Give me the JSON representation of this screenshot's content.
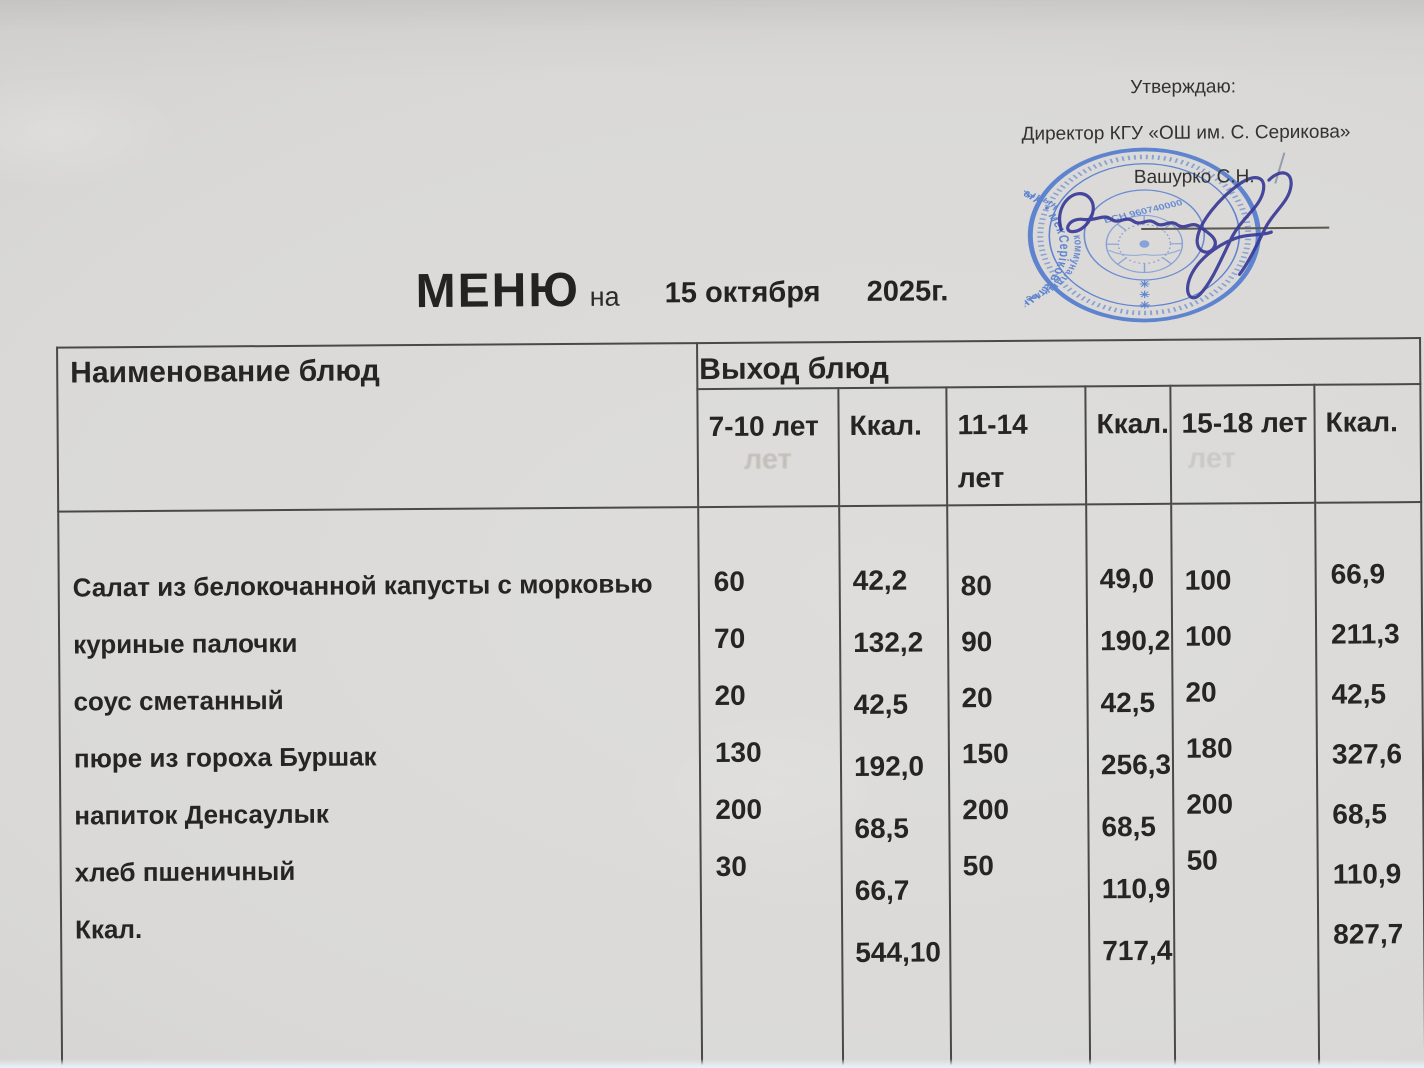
{
  "approval": {
    "label": "Утверждаю:",
    "director_title": "Директор КГУ «ОШ им. С. Серикова»",
    "director_name": "Вашурко С.Н."
  },
  "stamp": {
    "color": "#4d79cf",
    "ring_outer": "Серіков атындағы • жалпы білім беретін • Ақмола облысының • мектебі",
    "ring_inner": "коммуналдық мемлекеттік • білім басқармасы • Есіл • қаласының",
    "bsn": "БСН 960740000",
    "asterisk": "✳"
  },
  "title": {
    "word": "МЕНЮ",
    "preposition": "на",
    "date_day": "15 октября",
    "date_year": "2025г."
  },
  "menu_table": {
    "dishes_header": "Наименование блюд",
    "output_header": "Выход блюд",
    "age_columns": [
      "7-10 лет",
      "Ккал.",
      "11-14 лет",
      "Ккал.",
      "15-18 лет",
      "Ккал."
    ],
    "dishes": [
      "Салат из белокочанной капусты с морковью",
      "куриные палочки",
      "соус сметанный",
      "пюре из гороха Буршак",
      "напиток Денсаулык",
      "хлеб пшеничный",
      "Ккал."
    ],
    "portions_7_10": [
      "60",
      "70",
      "20",
      "130",
      "200",
      "30"
    ],
    "kcal_7_10": [
      "42,2",
      "132,2",
      "42,5",
      "192,0",
      "68,5",
      "66,7",
      "544,10"
    ],
    "portions_11_14": [
      "80",
      "90",
      "20",
      "150",
      "200",
      "50"
    ],
    "kcal_11_14": [
      "49,0",
      "190,2",
      "42,5",
      "256,3",
      "68,5",
      "110,9",
      "717,4"
    ],
    "portions_15_18": [
      "100",
      "100",
      "20",
      "180",
      "200",
      "50"
    ],
    "kcal_15_18": [
      "66,9",
      "211,3",
      "42,5",
      "327,6",
      "68,5",
      "110,9",
      "827,7"
    ]
  },
  "ghost": {
    "text": "лет"
  }
}
